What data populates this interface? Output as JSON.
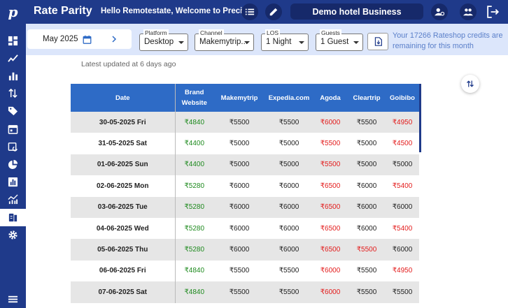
{
  "app": {
    "logo": "p",
    "title": "Rate Parity",
    "welcome": "Hello Remotestate, Welcome to Precium",
    "hotel": "Demo hotel Business"
  },
  "sidebar": {
    "items": [
      {
        "icon": "dashboard-icon"
      },
      {
        "icon": "trend-line-icon"
      },
      {
        "icon": "bar-chart-icon"
      },
      {
        "icon": "sort-arrows-icon"
      },
      {
        "icon": "tag-icon"
      },
      {
        "icon": "calendar-icon"
      },
      {
        "icon": "event-repeat-icon"
      },
      {
        "icon": "pie-chart-icon"
      },
      {
        "icon": "analytics-icon"
      },
      {
        "icon": "stacked-chart-icon"
      },
      {
        "icon": "rate-parity-icon",
        "active": true
      },
      {
        "icon": "gear-icon"
      }
    ],
    "bottom_icon": "menu-icon"
  },
  "filters": {
    "month": "May 2025",
    "platform": {
      "label": "Platform",
      "value": "Desktop"
    },
    "channel": {
      "label": "Channel",
      "value": "Makemytrip..."
    },
    "los": {
      "label": "LOS",
      "value": "1 Night"
    },
    "guests": {
      "label": "Guests",
      "value": "1 Guest"
    },
    "credits_text": "Your 17266 Rateshop credits are remaining for this month"
  },
  "updated_text": "Latest updated at 6 days ago",
  "table": {
    "headers": {
      "date": "Date",
      "brand": [
        "Brand",
        "Website"
      ],
      "channels": [
        "Makemytrip",
        "Expedia.com",
        "Agoda",
        "Cleartrip",
        "Goibibo"
      ]
    },
    "rows": [
      {
        "date": "30-05-2025 Fri",
        "brand": "₹4840",
        "cells": [
          [
            "₹5500",
            "n"
          ],
          [
            "₹5500",
            "n"
          ],
          [
            "₹6000",
            "h"
          ],
          [
            "₹5500",
            "n"
          ],
          [
            "₹4950",
            "h"
          ]
        ]
      },
      {
        "date": "31-05-2025 Sat",
        "brand": "₹4400",
        "cells": [
          [
            "₹5000",
            "n"
          ],
          [
            "₹5000",
            "n"
          ],
          [
            "₹5500",
            "h"
          ],
          [
            "₹5000",
            "n"
          ],
          [
            "₹4500",
            "h"
          ]
        ]
      },
      {
        "date": "01-06-2025 Sun",
        "brand": "₹4400",
        "cells": [
          [
            "₹5000",
            "n"
          ],
          [
            "₹5000",
            "n"
          ],
          [
            "₹5500",
            "h"
          ],
          [
            "₹5000",
            "n"
          ],
          [
            "₹5000",
            "n"
          ]
        ]
      },
      {
        "date": "02-06-2025 Mon",
        "brand": "₹5280",
        "cells": [
          [
            "₹6000",
            "n"
          ],
          [
            "₹6000",
            "n"
          ],
          [
            "₹6500",
            "h"
          ],
          [
            "₹6000",
            "n"
          ],
          [
            "₹5400",
            "h"
          ]
        ]
      },
      {
        "date": "03-06-2025 Tue",
        "brand": "₹5280",
        "cells": [
          [
            "₹6000",
            "n"
          ],
          [
            "₹6000",
            "n"
          ],
          [
            "₹6500",
            "h"
          ],
          [
            "₹6000",
            "n"
          ],
          [
            "₹6000",
            "n"
          ]
        ]
      },
      {
        "date": "04-06-2025 Wed",
        "brand": "₹5280",
        "cells": [
          [
            "₹6000",
            "n"
          ],
          [
            "₹6000",
            "n"
          ],
          [
            "₹6500",
            "h"
          ],
          [
            "₹6000",
            "n"
          ],
          [
            "₹5400",
            "h"
          ]
        ]
      },
      {
        "date": "05-06-2025 Thu",
        "brand": "₹5280",
        "cells": [
          [
            "₹6000",
            "n"
          ],
          [
            "₹6000",
            "n"
          ],
          [
            "₹6500",
            "h"
          ],
          [
            "₹5500",
            "h"
          ],
          [
            "₹6000",
            "n"
          ]
        ]
      },
      {
        "date": "06-06-2025 Fri",
        "brand": "₹4840",
        "cells": [
          [
            "₹5500",
            "n"
          ],
          [
            "₹5500",
            "n"
          ],
          [
            "₹6000",
            "h"
          ],
          [
            "₹5500",
            "n"
          ],
          [
            "₹4950",
            "h"
          ]
        ]
      },
      {
        "date": "07-06-2025 Sat",
        "brand": "₹4840",
        "cells": [
          [
            "₹5500",
            "n"
          ],
          [
            "₹5500",
            "n"
          ],
          [
            "₹6000",
            "h"
          ],
          [
            "₹5500",
            "n"
          ],
          [
            "₹5500",
            "n"
          ]
        ]
      }
    ]
  },
  "colors": {
    "primary": "#1f3a8a",
    "header_blue": "#2e6bc6",
    "own_rate": "#1e8a1e",
    "higher_rate": "#e31b1b",
    "filter_bg": "#dce6fb"
  }
}
